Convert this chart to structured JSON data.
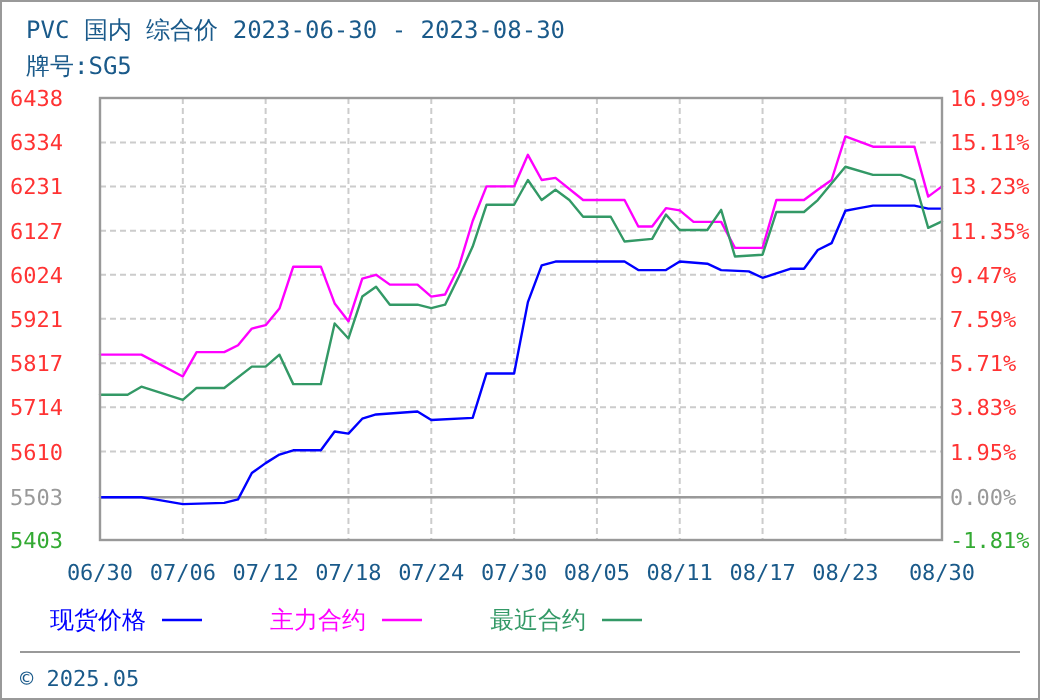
{
  "chart_data": {
    "type": "line",
    "title": "PVC 国内 综合价 2023-06-30 - 2023-08-30",
    "subtitle": "牌号:SG5",
    "xlim": [
      "2023-06-30",
      "2023-08-30"
    ],
    "xticks": [
      {
        "value": "2023-06-30",
        "label": "06/30"
      },
      {
        "value": "2023-07-06",
        "label": "07/06"
      },
      {
        "value": "2023-07-12",
        "label": "07/12"
      },
      {
        "value": "2023-07-18",
        "label": "07/18"
      },
      {
        "value": "2023-07-24",
        "label": "07/24"
      },
      {
        "value": "2023-07-30",
        "label": "07/30"
      },
      {
        "value": "2023-08-05",
        "label": "08/05"
      },
      {
        "value": "2023-08-11",
        "label": "08/11"
      },
      {
        "value": "2023-08-17",
        "label": "08/17"
      },
      {
        "value": "2023-08-23",
        "label": "08/23"
      },
      {
        "value": "2023-08-30",
        "label": "08/30"
      }
    ],
    "ylim": [
      5403,
      6438
    ],
    "yticks": [
      5403,
      5503,
      5610,
      5714,
      5817,
      5921,
      6024,
      6127,
      6231,
      6334,
      6438
    ],
    "y2lim": [
      -1.81,
      16.99
    ],
    "y2ticks": [
      {
        "value": -1.81,
        "label": "-1.81%"
      },
      {
        "value": 0,
        "label": "0.00%"
      },
      {
        "value": 1.95,
        "label": "1.95%"
      },
      {
        "value": 3.83,
        "label": "3.83%"
      },
      {
        "value": 5.71,
        "label": "5.71%"
      },
      {
        "value": 7.59,
        "label": "7.59%"
      },
      {
        "value": 9.47,
        "label": "9.47%"
      },
      {
        "value": 11.35,
        "label": "11.35%"
      },
      {
        "value": 13.23,
        "label": "13.23%"
      },
      {
        "value": 15.11,
        "label": "15.11%"
      },
      {
        "value": 16.99,
        "label": "16.99%"
      }
    ],
    "grid": true,
    "legend": "bottom",
    "line_style": "solid",
    "ref_lines": [
      {
        "axis": "y",
        "value": 5503,
        "color": "#999999"
      }
    ],
    "annotations": [
      "© 2025.05"
    ],
    "series": [
      {
        "name": "现货价格",
        "color": "#0000ff",
        "x": [
          "2023-06-30",
          "2023-07-03",
          "2023-07-04",
          "2023-07-06",
          "2023-07-09",
          "2023-07-10",
          "2023-07-11",
          "2023-07-12",
          "2023-07-13",
          "2023-07-14",
          "2023-07-16",
          "2023-07-17",
          "2023-07-18",
          "2023-07-19",
          "2023-07-20",
          "2023-07-23",
          "2023-07-24",
          "2023-07-27",
          "2023-07-28",
          "2023-07-30",
          "2023-07-31",
          "2023-08-01",
          "2023-08-02",
          "2023-08-07",
          "2023-08-08",
          "2023-08-10",
          "2023-08-11",
          "2023-08-13",
          "2023-08-14",
          "2023-08-16",
          "2023-08-17",
          "2023-08-19",
          "2023-08-20",
          "2023-08-21",
          "2023-08-22",
          "2023-08-23",
          "2023-08-24",
          "2023-08-25",
          "2023-08-28",
          "2023-08-29",
          "2023-08-30"
        ],
        "values": [
          5503,
          5503,
          5498,
          5487,
          5490,
          5498,
          5560,
          5583,
          5603,
          5613,
          5613,
          5657,
          5652,
          5687,
          5697,
          5704,
          5684,
          5689,
          5793,
          5793,
          5960,
          6046,
          6055,
          6055,
          6035,
          6035,
          6055,
          6050,
          6035,
          6032,
          6017,
          6038,
          6038,
          6082,
          6098,
          6174,
          6180,
          6186,
          6186,
          6179,
          6179
        ]
      },
      {
        "name": "主力合约",
        "color": "#ff00ff",
        "x": [
          "2023-06-30",
          "2023-07-03",
          "2023-07-06",
          "2023-07-07",
          "2023-07-09",
          "2023-07-10",
          "2023-07-11",
          "2023-07-12",
          "2023-07-13",
          "2023-07-14",
          "2023-07-16",
          "2023-07-17",
          "2023-07-18",
          "2023-07-19",
          "2023-07-20",
          "2023-07-21",
          "2023-07-23",
          "2023-07-24",
          "2023-07-25",
          "2023-07-26",
          "2023-07-27",
          "2023-07-28",
          "2023-07-30",
          "2023-07-31",
          "2023-08-01",
          "2023-08-02",
          "2023-08-04",
          "2023-08-07",
          "2023-08-08",
          "2023-08-09",
          "2023-08-10",
          "2023-08-11",
          "2023-08-12",
          "2023-08-14",
          "2023-08-15",
          "2023-08-17",
          "2023-08-18",
          "2023-08-20",
          "2023-08-21",
          "2023-08-22",
          "2023-08-23",
          "2023-08-25",
          "2023-08-28",
          "2023-08-29",
          "2023-08-30"
        ],
        "values": [
          5837,
          5837,
          5786,
          5843,
          5843,
          5859,
          5898,
          5906,
          5945,
          6043,
          6043,
          5957,
          5915,
          6015,
          6024,
          6001,
          6001,
          5973,
          5978,
          6043,
          6150,
          6231,
          6231,
          6305,
          6246,
          6251,
          6199,
          6199,
          6137,
          6137,
          6180,
          6175,
          6148,
          6148,
          6087,
          6087,
          6199,
          6199,
          6223,
          6246,
          6348,
          6324,
          6324,
          6207,
          6231
        ]
      },
      {
        "name": "最近合约",
        "color": "#339966",
        "x": [
          "2023-06-30",
          "2023-07-02",
          "2023-07-03",
          "2023-07-06",
          "2023-07-07",
          "2023-07-09",
          "2023-07-11",
          "2023-07-12",
          "2023-07-13",
          "2023-07-14",
          "2023-07-16",
          "2023-07-17",
          "2023-07-18",
          "2023-07-19",
          "2023-07-20",
          "2023-07-21",
          "2023-07-23",
          "2023-07-24",
          "2023-07-25",
          "2023-07-26",
          "2023-07-27",
          "2023-07-28",
          "2023-07-30",
          "2023-07-31",
          "2023-08-01",
          "2023-08-02",
          "2023-08-03",
          "2023-08-04",
          "2023-08-06",
          "2023-08-07",
          "2023-08-09",
          "2023-08-10",
          "2023-08-11",
          "2023-08-13",
          "2023-08-14",
          "2023-08-15",
          "2023-08-17",
          "2023-08-18",
          "2023-08-20",
          "2023-08-21",
          "2023-08-23",
          "2023-08-25",
          "2023-08-27",
          "2023-08-28",
          "2023-08-29",
          "2023-08-30"
        ],
        "values": [
          5743,
          5743,
          5762,
          5731,
          5759,
          5759,
          5809,
          5809,
          5837,
          5768,
          5768,
          5910,
          5875,
          5973,
          5996,
          5954,
          5954,
          5946,
          5954,
          6020,
          6090,
          6188,
          6188,
          6246,
          6199,
          6223,
          6199,
          6160,
          6160,
          6102,
          6108,
          6165,
          6129,
          6129,
          6176,
          6067,
          6071,
          6171,
          6171,
          6199,
          6277,
          6258,
          6258,
          6246,
          6134,
          6149
        ]
      }
    ]
  }
}
